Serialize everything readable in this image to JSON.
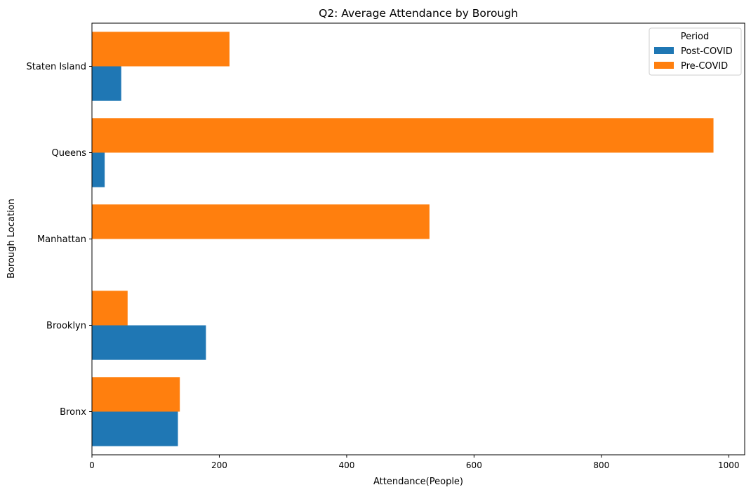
{
  "chart_data": {
    "type": "bar",
    "orientation": "horizontal",
    "title": "Q2: Average Attendance by Borough",
    "xlabel": "Attendance(People)",
    "ylabel": "Borough Location",
    "xlim": [
      0,
      1025
    ],
    "xticks": [
      0,
      200,
      400,
      600,
      800,
      1000
    ],
    "categories": [
      "Bronx",
      "Brooklyn",
      "Manhattan",
      "Queens",
      "Staten Island"
    ],
    "series": [
      {
        "name": "Post-COVID",
        "color": "#1f77b4",
        "values": [
          135,
          179,
          0,
          20,
          46
        ]
      },
      {
        "name": "Pre-COVID",
        "color": "#ff7f0e",
        "values": [
          138,
          56,
          530,
          976,
          216
        ]
      }
    ],
    "legend": {
      "title": "Period",
      "position": "top-right"
    },
    "grid": false
  }
}
